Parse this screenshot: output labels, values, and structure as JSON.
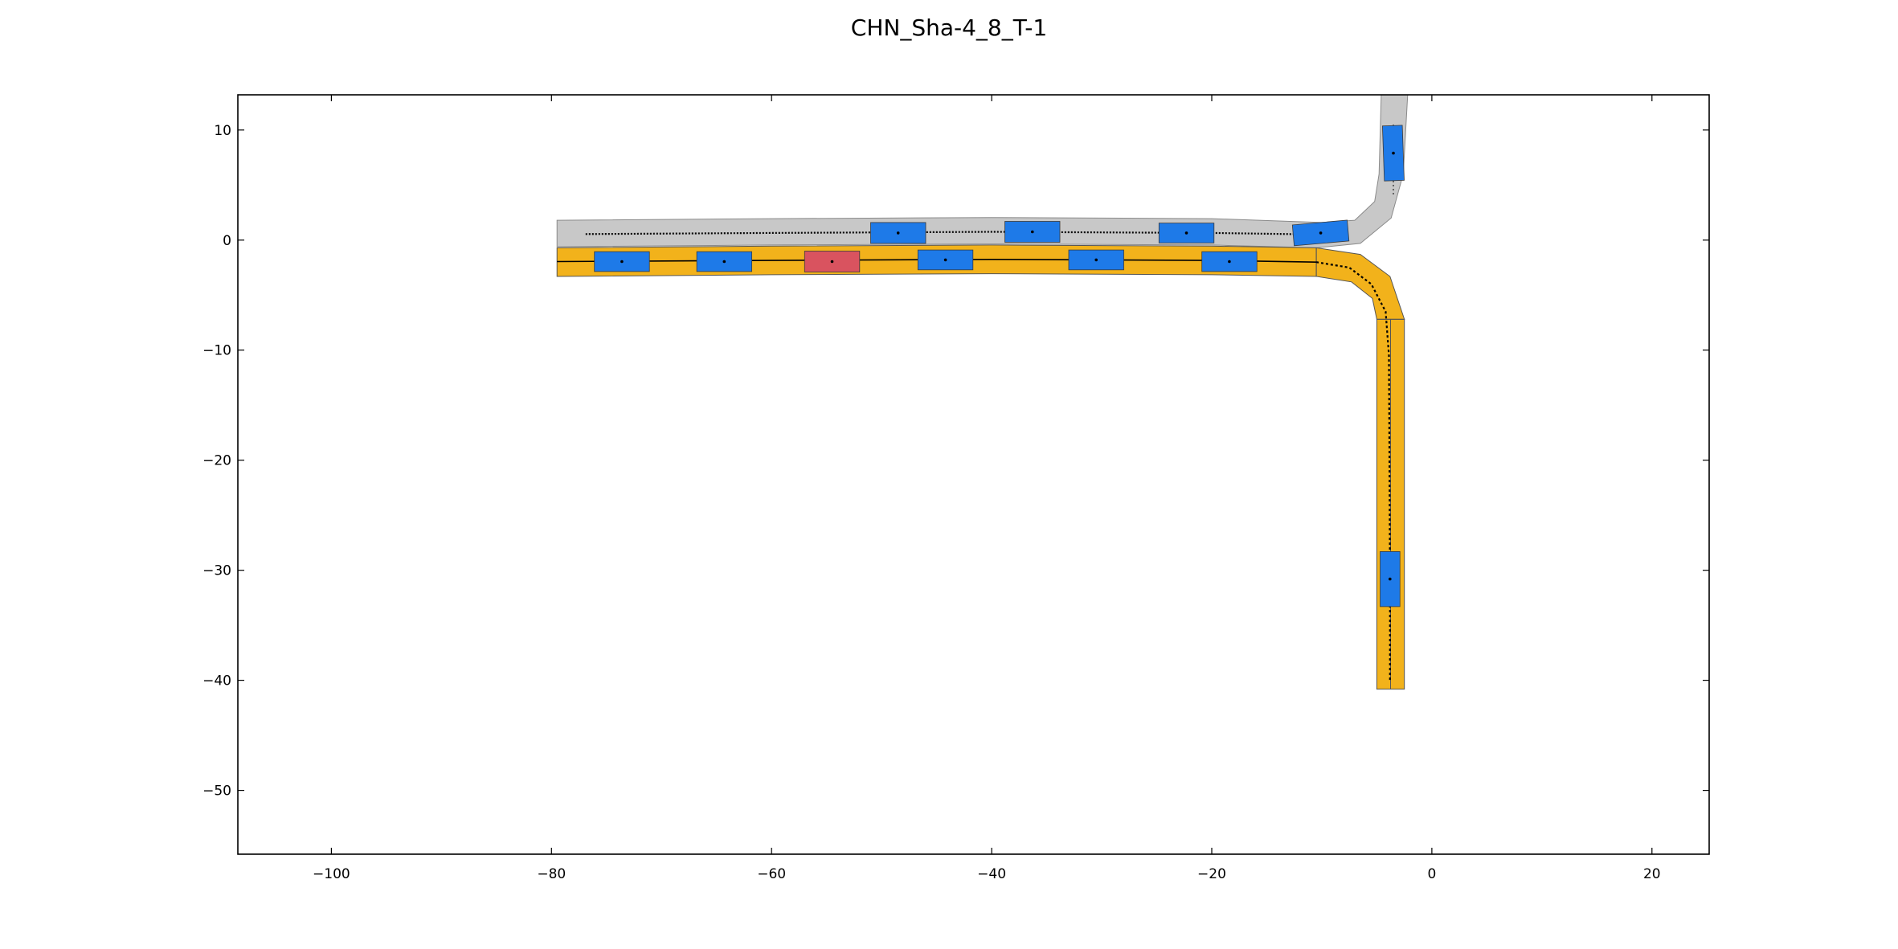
{
  "chart_data": {
    "type": "scatter",
    "title": "CHN_Sha-4_8_T-1",
    "xlabel": "",
    "ylabel": "",
    "xlim": [
      -108.5,
      25.2
    ],
    "ylim": [
      -55.8,
      13.2
    ],
    "grid": false,
    "x_ticks": [
      -100,
      -80,
      -60,
      -40,
      -20,
      0,
      20
    ],
    "y_ticks": [
      10,
      0,
      -10,
      -20,
      -30,
      -40,
      -50
    ],
    "x_tick_labels": [
      "−100",
      "−80",
      "−60",
      "−40",
      "−20",
      "0",
      "20"
    ],
    "y_tick_labels": [
      "10",
      "0",
      "−10",
      "−20",
      "−30",
      "−40",
      "−50"
    ],
    "colors": {
      "other_lane": "#c8c8c8",
      "planned_route": "#f2b21b",
      "vehicle": "#1e7ae8",
      "ego_vehicle": "#d9535f",
      "trajectory": "#000000"
    },
    "lanes": {
      "westbound_left": {
        "upper": [
          [
            -79.5,
            1.8
          ],
          [
            -60,
            1.95
          ],
          [
            -40,
            2.05
          ],
          [
            -20,
            1.95
          ],
          [
            -10,
            1.6
          ],
          [
            -7,
            1.8
          ],
          [
            -5.2,
            3.5
          ],
          [
            -4.8,
            6.0
          ],
          [
            -4.6,
            13.2
          ]
        ],
        "lower": [
          [
            -79.5,
            -0.6
          ],
          [
            -60,
            -0.45
          ],
          [
            -40,
            -0.35
          ],
          [
            -20,
            -0.45
          ],
          [
            -10.5,
            -0.7
          ],
          [
            -6.5,
            -0.3
          ],
          [
            -3.7,
            2
          ],
          [
            -2.6,
            6.0
          ],
          [
            -2.2,
            13.2
          ]
        ]
      },
      "planned_straight": {
        "upper": [
          [
            -79.5,
            -0.7
          ],
          [
            -60,
            -0.55
          ],
          [
            -40,
            -0.45
          ],
          [
            -20,
            -0.55
          ],
          [
            -10.5,
            -0.7
          ]
        ],
        "lower": [
          [
            -79.5,
            -3.3
          ],
          [
            -60,
            -3.15
          ],
          [
            -40,
            -3.05
          ],
          [
            -20,
            -3.15
          ],
          [
            -10.5,
            -3.3
          ]
        ]
      },
      "planned_turn": {
        "outer": [
          [
            -10.5,
            -0.7
          ],
          [
            -6.5,
            -1.3
          ],
          [
            -3.8,
            -3.3
          ],
          [
            -2.5,
            -7.2
          ]
        ],
        "inner": [
          [
            -10.5,
            -3.3
          ],
          [
            -7.3,
            -3.8
          ],
          [
            -5.4,
            -5.3
          ],
          [
            -5.0,
            -7.2
          ]
        ]
      },
      "planned_south": {
        "left": [
          [
            -5.0,
            -7.2
          ],
          [
            -5.0,
            -40.8
          ]
        ],
        "right": [
          [
            -2.5,
            -7.2
          ],
          [
            -2.5,
            -40.8
          ]
        ],
        "divider": [
          [
            -3.75,
            -7.2
          ],
          [
            -3.75,
            -40.8
          ]
        ]
      },
      "junction_divider": [
        [
          -10.5,
          -0.7
        ],
        [
          -10.5,
          -3.3
        ]
      ],
      "turn_end_divider": [
        [
          -5.0,
          -7.2
        ],
        [
          -2.5,
          -7.2
        ]
      ]
    },
    "trajectories": {
      "upper_dotted": [
        [
          -76.9,
          0.55
        ],
        [
          -60,
          0.65
        ],
        [
          -40,
          0.75
        ],
        [
          -20,
          0.65
        ],
        [
          -10,
          0.5
        ],
        [
          -8.5,
          0.55
        ]
      ],
      "planned_center": [
        [
          -79.5,
          -1.95
        ],
        [
          -60,
          -1.85
        ],
        [
          -40,
          -1.75
        ],
        [
          -20,
          -1.85
        ],
        [
          -10.5,
          -2.0
        ]
      ],
      "turn_dotted": [
        [
          -10.5,
          -2.0
        ],
        [
          -7.5,
          -2.5
        ],
        [
          -5.5,
          -4.0
        ],
        [
          -4.2,
          -6.5
        ],
        [
          -3.9,
          -10.5
        ],
        [
          -3.8,
          -30.0
        ],
        [
          -3.8,
          -40.0
        ]
      ],
      "vertical_north_trace": [
        [
          -3.5,
          10.5
        ],
        [
          -3.5,
          4.0
        ]
      ]
    },
    "vehicles": [
      {
        "x": -73.6,
        "y": -1.95,
        "w": 5.0,
        "h": 1.8,
        "angle": 0,
        "ego": false
      },
      {
        "x": -64.3,
        "y": -1.95,
        "w": 5.0,
        "h": 1.8,
        "angle": 0,
        "ego": false
      },
      {
        "x": -54.5,
        "y": -1.95,
        "w": 5.0,
        "h": 1.9,
        "angle": 0,
        "ego": true
      },
      {
        "x": -44.2,
        "y": -1.8,
        "w": 5.0,
        "h": 1.8,
        "angle": 0,
        "ego": false
      },
      {
        "x": -30.5,
        "y": -1.8,
        "w": 5.0,
        "h": 1.8,
        "angle": 0,
        "ego": false
      },
      {
        "x": -18.4,
        "y": -1.95,
        "w": 5.0,
        "h": 1.8,
        "angle": 0,
        "ego": false
      },
      {
        "x": -48.5,
        "y": 0.65,
        "w": 5.0,
        "h": 1.9,
        "angle": 0,
        "ego": false
      },
      {
        "x": -36.3,
        "y": 0.75,
        "w": 5.0,
        "h": 1.9,
        "angle": 0,
        "ego": false
      },
      {
        "x": -22.3,
        "y": 0.65,
        "w": 5.0,
        "h": 1.8,
        "angle": 0,
        "ego": false
      },
      {
        "x": -10.1,
        "y": 0.65,
        "w": 5.0,
        "h": 1.9,
        "angle": 5,
        "ego": false
      },
      {
        "x": -3.5,
        "y": 7.9,
        "w": 1.8,
        "h": 5.0,
        "angle": 2,
        "ego": false
      },
      {
        "x": -3.8,
        "y": -30.8,
        "w": 1.8,
        "h": 5.0,
        "angle": 0,
        "ego": false
      }
    ]
  }
}
